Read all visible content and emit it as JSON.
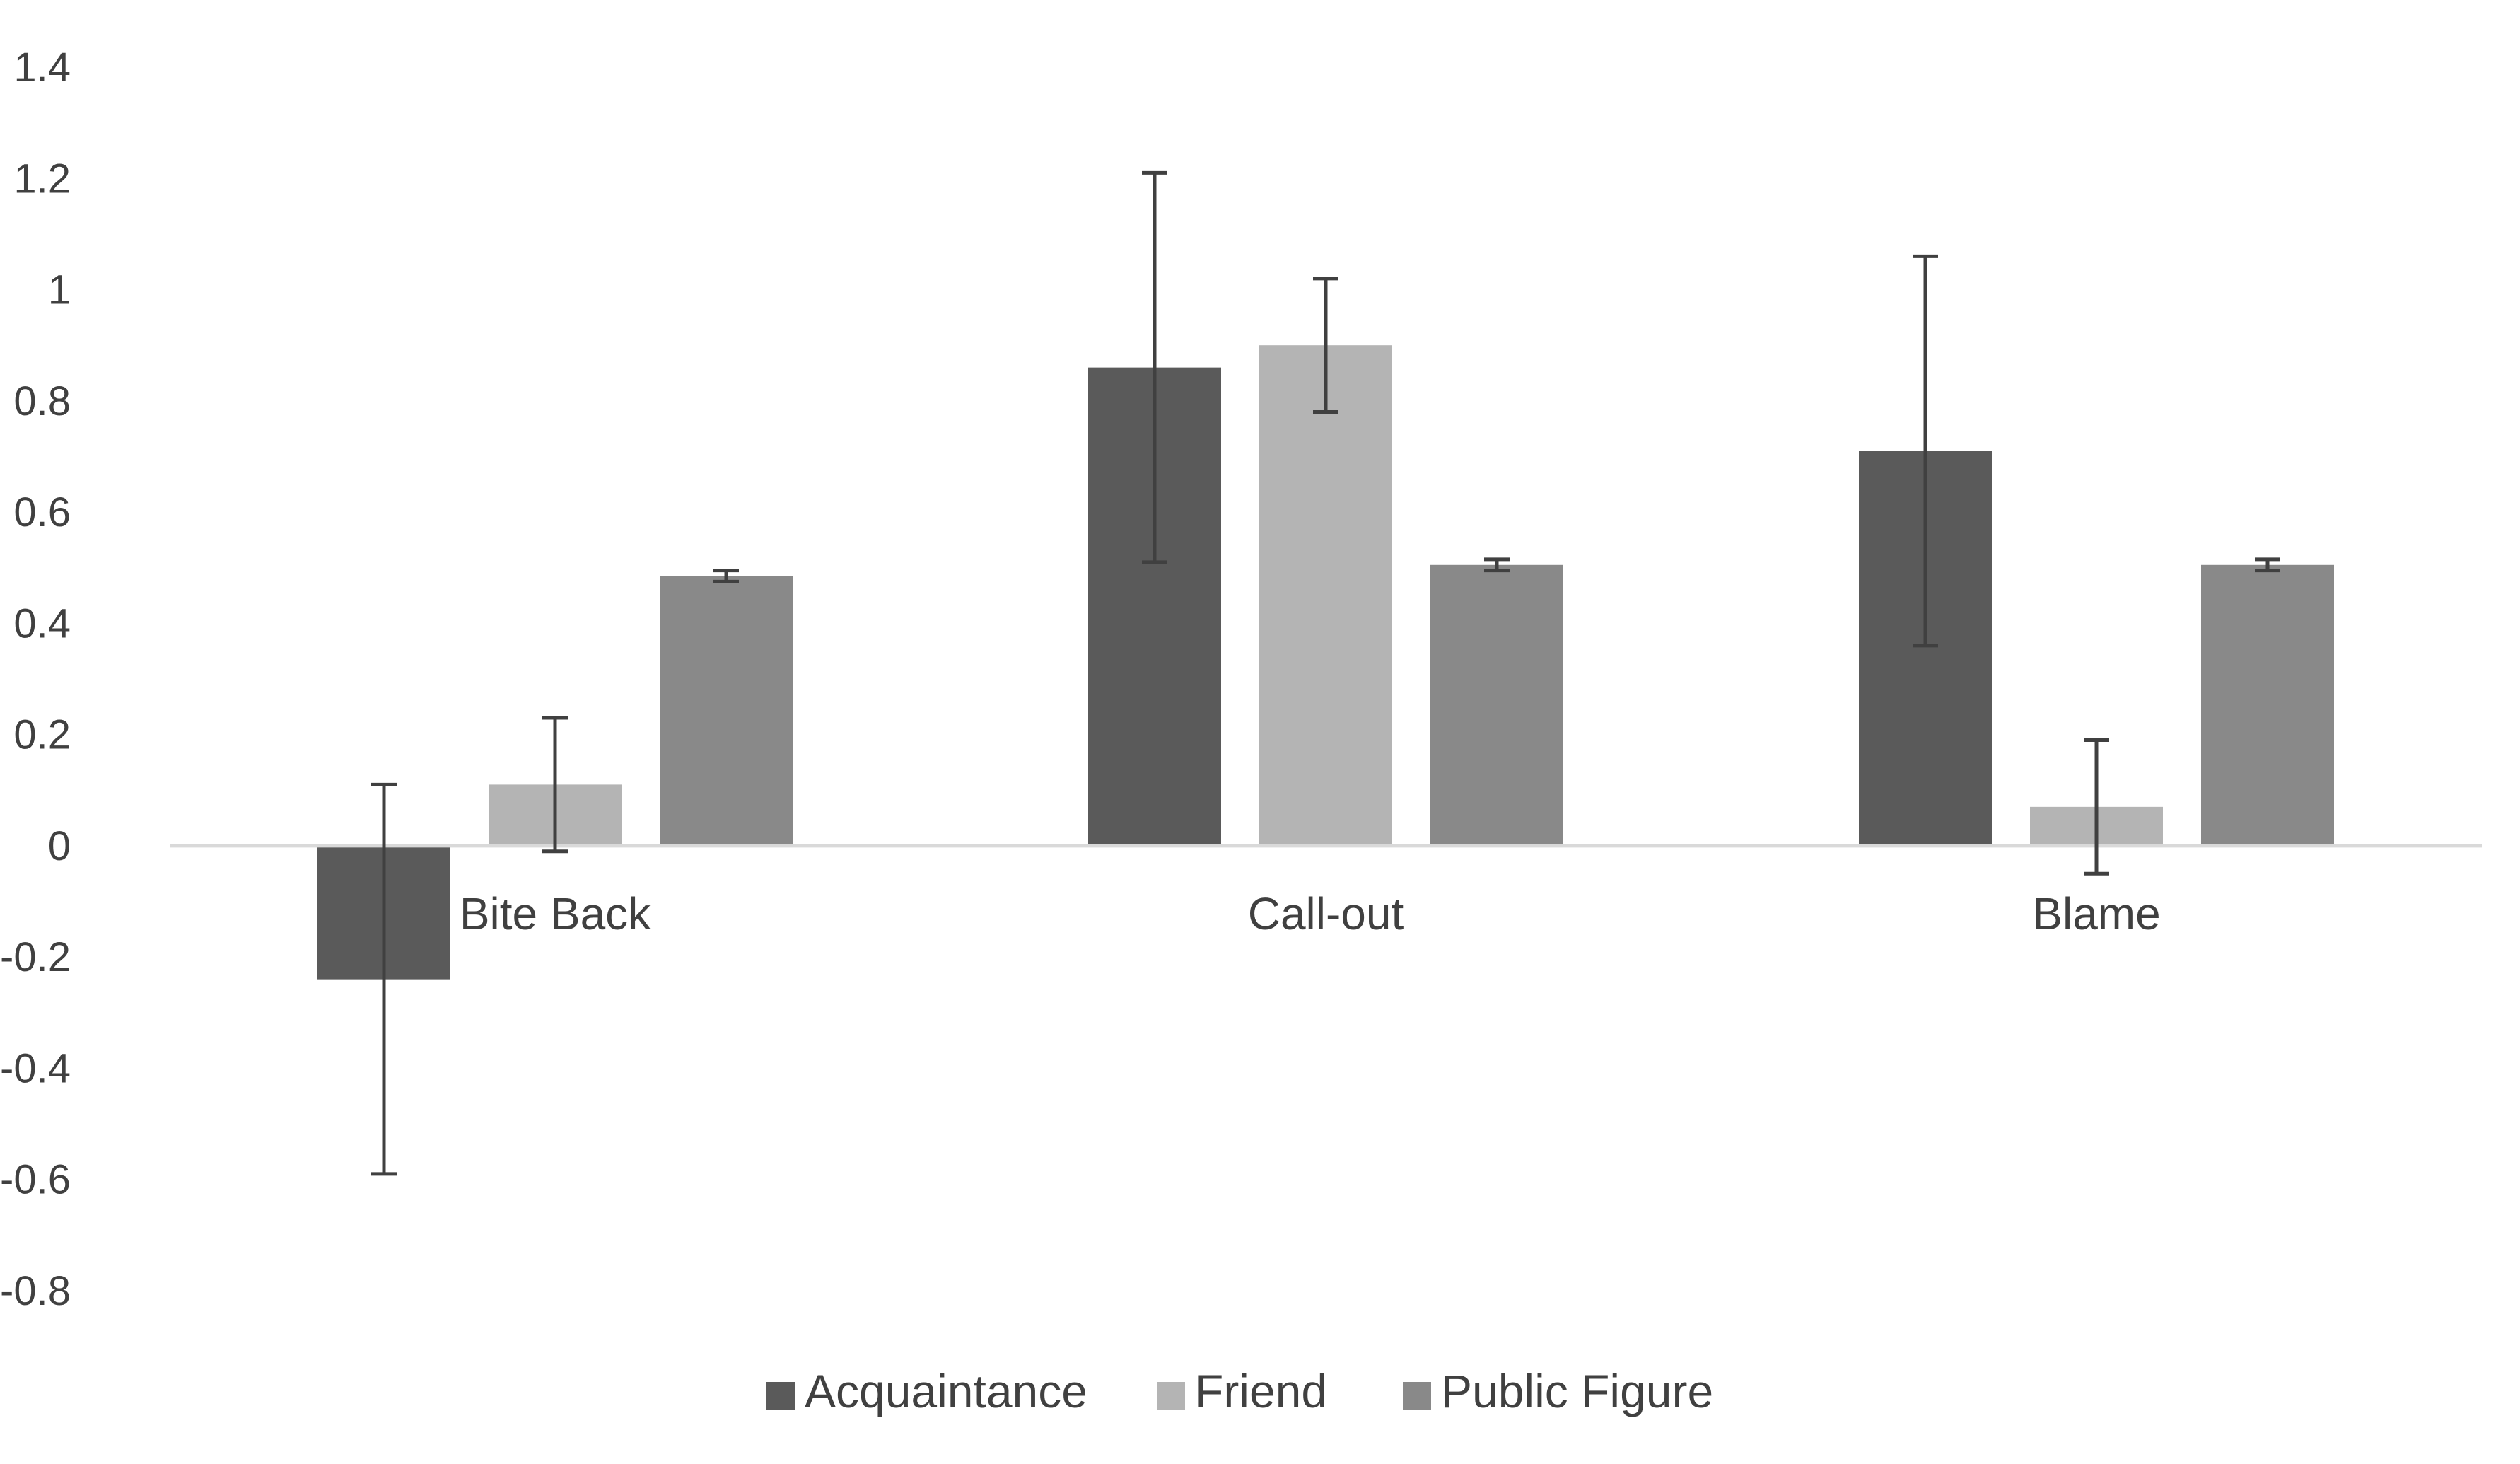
{
  "chart_data": {
    "type": "bar",
    "title": "",
    "xlabel": "",
    "ylabel": "",
    "categories": [
      "Bite Back",
      "Call-out",
      "Blame"
    ],
    "ylim": [
      -0.8,
      1.4
    ],
    "yticks": [
      1.4,
      1.2,
      1,
      0.8,
      0.6,
      0.4,
      0.2,
      0,
      -0.2,
      -0.4,
      -0.6,
      -0.8
    ],
    "ytick_labels": [
      "1.4",
      "1.2",
      "1",
      "0.8",
      "0.6",
      "0.4",
      "0.2",
      "0",
      "-0.2",
      "-0.4",
      "-0.6",
      "-0.8"
    ],
    "grid": false,
    "legend_position": "bottom",
    "series": [
      {
        "name": "Acquaintance",
        "color": "#5a5a5a",
        "values": [
          -0.24,
          0.86,
          0.71
        ],
        "error": [
          0.35,
          0.35,
          0.35
        ]
      },
      {
        "name": "Friend",
        "color": "#b4b4b4",
        "values": [
          0.11,
          0.9,
          0.07
        ],
        "error": [
          0.12,
          0.12,
          0.12
        ]
      },
      {
        "name": "Public Figure",
        "color": "#898989",
        "values": [
          0.485,
          0.505,
          0.505
        ],
        "error": [
          0.01,
          0.01,
          0.01
        ]
      }
    ],
    "axis_color": "#d9d9d9",
    "error_bar_color": "#404040"
  }
}
